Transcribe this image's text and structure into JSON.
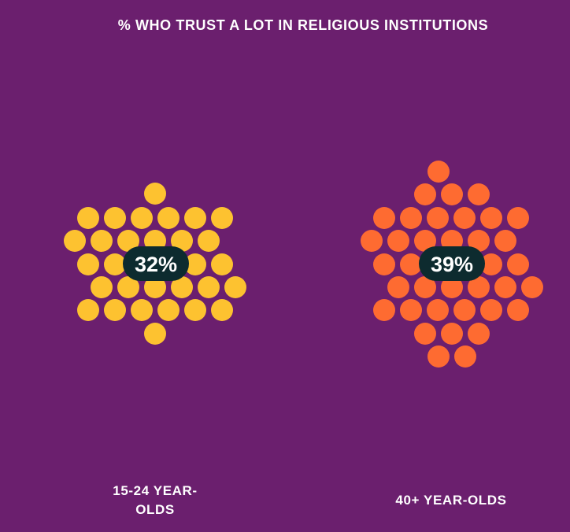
{
  "chart_data": {
    "type": "pictogram",
    "title": "% WHO TRUST A LOT IN RELIGIOUS INSTITUTIONS",
    "categories": [
      "15-24 YEAR-OLDS",
      "40+ YEAR-OLDS"
    ],
    "values": [
      32,
      39
    ],
    "value_labels": [
      "32%",
      "39%"
    ],
    "unit": "%",
    "colors": [
      "#fdc230",
      "#fe6b31"
    ]
  },
  "colors": {
    "background": "#6b1f6e",
    "badge": "#0d2b2f",
    "text": "#ffffff"
  }
}
